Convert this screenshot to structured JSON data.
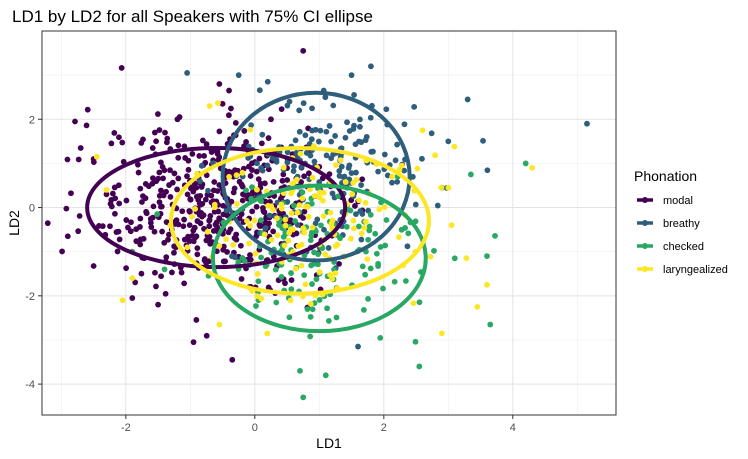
{
  "chart_data": {
    "type": "scatter",
    "title": "LD1 by LD2 for all Speakers with 75% CI ellipse",
    "xlabel": "LD1",
    "ylabel": "LD2",
    "xlim": [
      -3.3,
      5.6
    ],
    "ylim": [
      -4.7,
      4.0
    ],
    "xticks": [
      -2,
      0,
      2,
      4
    ],
    "yticks": [
      -4,
      -2,
      0,
      2
    ],
    "grid": true,
    "legend": {
      "title": "Phonation",
      "position": "right"
    },
    "series": [
      {
        "name": "modal",
        "color": "#440154",
        "ellipse": {
          "cx": -0.6,
          "cy": 0.0,
          "rx": 2.0,
          "ry": 1.35
        },
        "center": [
          -0.6,
          0.0
        ],
        "spread": [
          0.95,
          0.9
        ],
        "n": 480,
        "points": [
          [
            -2.9,
            -0.65
          ],
          [
            -2.5,
            1.1
          ],
          [
            -2.7,
            1.35
          ],
          [
            -2.3,
            0.3
          ],
          [
            -0.35,
            -3.45
          ],
          [
            -0.95,
            -3.05
          ],
          [
            -1.5,
            -2.2
          ],
          [
            -1.9,
            -2.05
          ],
          [
            0.25,
            2.0
          ],
          [
            -0.5,
            2.35
          ],
          [
            -0.55,
            2.8
          ],
          [
            -0.4,
            2.65
          ],
          [
            0.75,
            3.55
          ],
          [
            -1.2,
            2.0
          ],
          [
            -1.55,
            1.7
          ]
        ]
      },
      {
        "name": "breathy",
        "color": "#2f5d7c",
        "ellipse": {
          "cx": 0.95,
          "cy": 0.7,
          "rx": 1.45,
          "ry": 1.9
        },
        "center": [
          1.1,
          0.9
        ],
        "spread": [
          0.75,
          0.85
        ],
        "n": 190,
        "points": [
          [
            5.15,
            1.9
          ],
          [
            3.3,
            2.45
          ],
          [
            -1.05,
            3.05
          ],
          [
            -0.25,
            3.0
          ],
          [
            1.8,
            3.2
          ],
          [
            1.5,
            3.0
          ],
          [
            0.2,
            2.85
          ],
          [
            3.0,
            1.5
          ],
          [
            1.6,
            -3.15
          ]
        ]
      },
      {
        "name": "checked",
        "color": "#28a863",
        "ellipse": {
          "cx": 1.0,
          "cy": -1.15,
          "rx": 1.65,
          "ry": 1.65
        },
        "center": [
          1.0,
          -1.1
        ],
        "spread": [
          0.8,
          0.8
        ],
        "n": 150,
        "points": [
          [
            4.2,
            1.0
          ],
          [
            3.35,
            0.75
          ],
          [
            3.65,
            -2.65
          ],
          [
            3.6,
            -1.1
          ],
          [
            0.75,
            -4.3
          ],
          [
            0.7,
            -3.7
          ],
          [
            1.1,
            -3.8
          ],
          [
            2.55,
            -3.6
          ],
          [
            -1.4,
            -1.4
          ],
          [
            -1.9,
            -1.0
          ],
          [
            3.1,
            -1.15
          ],
          [
            2.9,
            0.45
          ]
        ]
      },
      {
        "name": "laryngealized",
        "color": "#fde725",
        "ellipse": {
          "cx": 0.7,
          "cy": -0.3,
          "rx": 2.0,
          "ry": 1.65
        },
        "center": [
          0.7,
          -0.3
        ],
        "spread": [
          0.95,
          0.85
        ],
        "n": 150,
        "points": [
          [
            4.3,
            0.9
          ],
          [
            3.6,
            -1.75
          ],
          [
            3.45,
            -2.25
          ],
          [
            2.9,
            -2.85
          ],
          [
            2.6,
            1.75
          ],
          [
            -2.05,
            -2.1
          ],
          [
            -1.9,
            -1.6
          ],
          [
            -2.45,
            1.15
          ],
          [
            -0.55,
            -2.65
          ],
          [
            -0.7,
            2.3
          ],
          [
            3.0,
            0.45
          ],
          [
            3.05,
            -0.4
          ],
          [
            -2.3,
            0.4
          ]
        ]
      }
    ]
  }
}
